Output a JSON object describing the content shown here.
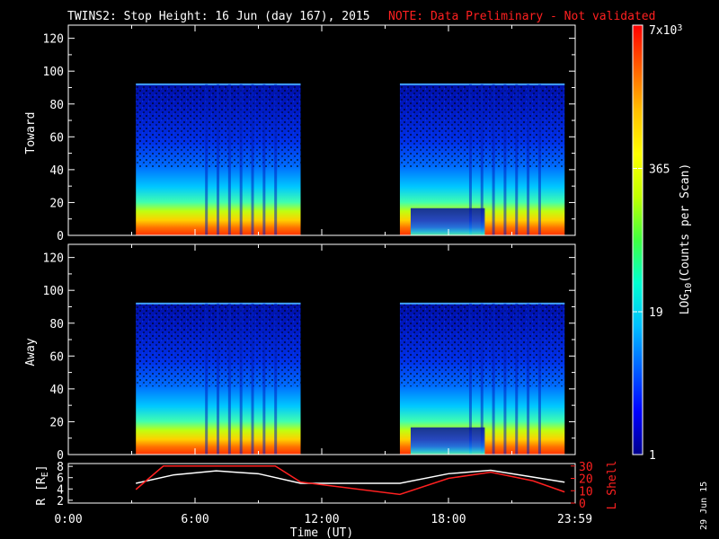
{
  "title_main": "TWINS2: Stop Height: 16 Jun (day 167), 2015",
  "title_note": "NOTE: Data Preliminary - Not validated",
  "date_stamp": "29 Jun 15",
  "colors": {
    "note": "#ff2020",
    "axes": "#ffffff",
    "lshell": "#ff2020",
    "radius": "#ffffff"
  },
  "chart_data": [
    {
      "type": "heatmap",
      "panel": "Toward",
      "ylabel": "Toward",
      "ylim": [
        0,
        128
      ],
      "y_ticks": [
        "0",
        "20",
        "40",
        "60",
        "80",
        "100",
        "120"
      ],
      "x_ticks": [
        "0:00",
        "6:00",
        "12:00",
        "18:00",
        "23:59"
      ],
      "data_intervals_hours": [
        [
          3.2,
          11.0
        ],
        [
          15.7,
          23.5
        ]
      ],
      "top_height": 92
    },
    {
      "type": "heatmap",
      "panel": "Away",
      "ylabel": "Away",
      "ylim": [
        0,
        128
      ],
      "y_ticks": [
        "0",
        "20",
        "40",
        "60",
        "80",
        "100",
        "120"
      ],
      "x_ticks": [
        "0:00",
        "6:00",
        "12:00",
        "18:00",
        "23:59"
      ],
      "data_intervals_hours": [
        [
          3.2,
          11.0
        ],
        [
          15.7,
          23.5
        ]
      ],
      "top_height": 92
    },
    {
      "type": "line",
      "panel": "orbit",
      "xlabel": "Time (UT)",
      "x_ticks": [
        "0:00",
        "6:00",
        "12:00",
        "18:00",
        "23:59"
      ],
      "ylabel_left": "R [RE]",
      "ylabel_left_base": "R [R",
      "ylabel_left_sub": "E",
      "ylabel_left_end": "]",
      "yticks_left": [
        "2",
        "4",
        "6",
        "8"
      ],
      "ylabel_right": "L Shell",
      "yticks_right": [
        "0",
        "10",
        "20",
        "30"
      ],
      "series": [
        {
          "name": "R [RE]",
          "color": "#ffffff",
          "x": [
            3.2,
            5,
            7,
            9,
            11,
            15.7,
            18,
            20,
            23.5
          ],
          "values": [
            5.0,
            6.5,
            7.2,
            6.7,
            5.0,
            5.0,
            6.7,
            7.3,
            5.2
          ]
        },
        {
          "name": "L Shell",
          "color": "#ff2020",
          "x": [
            3.2,
            4.5,
            9.8,
            11,
            15.7,
            18,
            20,
            22,
            23.5
          ],
          "values": [
            11,
            30,
            30,
            17,
            7,
            20,
            25,
            18,
            9
          ]
        }
      ]
    }
  ],
  "colorbar": {
    "label": "LOG10(Counts per Scan)",
    "label_base": "LOG",
    "label_sub": "10",
    "label_end": "(Counts per Scan)",
    "ticks": [
      "1",
      "19",
      "365",
      "7x10"
    ],
    "top_base": "7x10",
    "top_exp": "3",
    "colors": [
      "#00008c",
      "#0000ff",
      "#0060ff",
      "#00c0ff",
      "#00ffd0",
      "#40ff40",
      "#c0ff00",
      "#ffff00",
      "#ffc000",
      "#ff6000",
      "#ff0000"
    ]
  }
}
